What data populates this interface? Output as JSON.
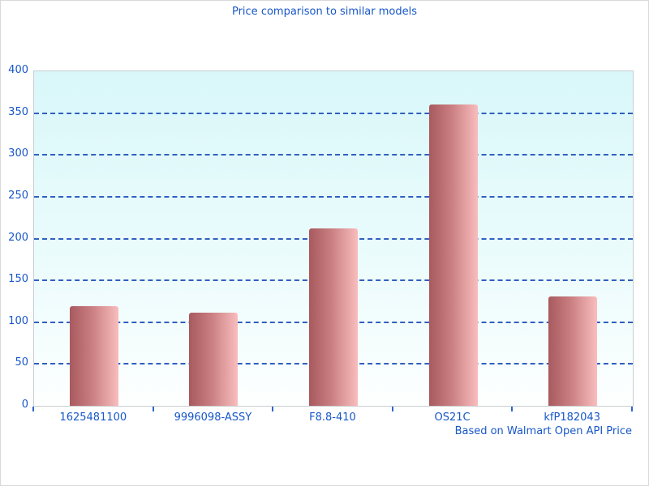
{
  "title": "Price comparison to similar models",
  "footer": "Based on Walmart Open API Price",
  "colors": {
    "text_blue": "#1757c8",
    "gridline_blue": "#3060c0",
    "tick_blue": "#2e66cc",
    "plot_bg_top": "#d9f7f9",
    "plot_bg_bottom": "#fdfffe",
    "plot_border": "#c9ced2",
    "bar_gradient_dark": "#a85a5e",
    "bar_gradient_mid": "#c97e81",
    "bar_gradient_light": "#f9bdbd"
  },
  "chart_data": {
    "type": "bar",
    "categories": [
      "1625481100",
      "9996098-ASSY",
      "F8.8-410",
      "OS21C",
      "kfP182043"
    ],
    "values": [
      119,
      111,
      212,
      360,
      131
    ],
    "title": "Price comparison to similar models",
    "xlabel": "",
    "ylabel": "",
    "ylim": [
      0,
      400
    ],
    "ytick_step": 50,
    "grid": "horizontal-dashed",
    "legend_position": "none",
    "annotation": "Based on Walmart Open API Price",
    "bar_orientation": "vertical"
  }
}
